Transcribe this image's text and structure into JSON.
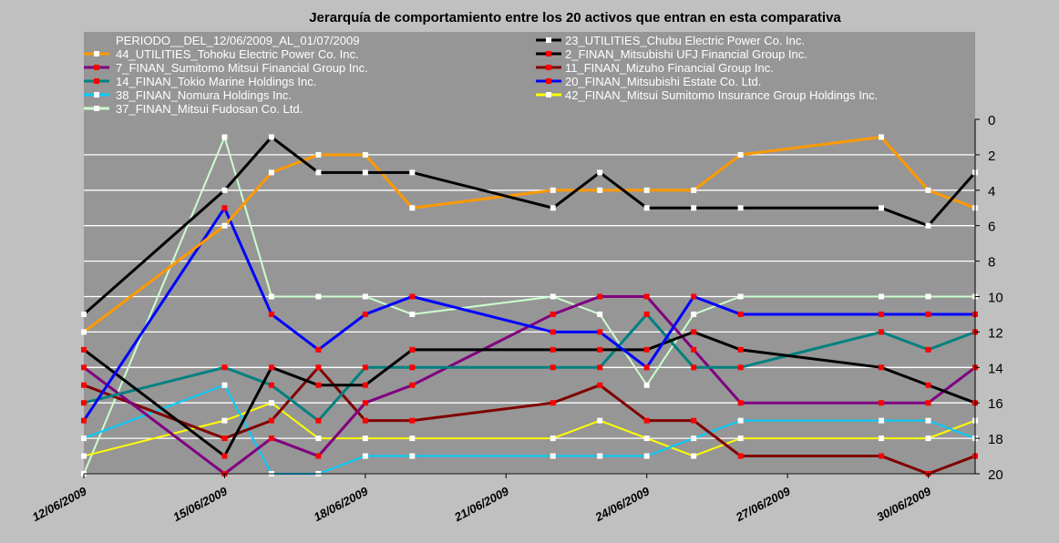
{
  "chart_data": {
    "type": "line",
    "title": "Jerarquía de comportamiento entre los 20 activos que entran en esta comparativa",
    "period_label": "PERIODO__DEL_12/06/2009_AL_01/07/2009",
    "x": [
      "12/06/2009",
      "15/06/2009",
      "16/06/2009",
      "17/06/2009",
      "18/06/2009",
      "19/06/2009",
      "22/06/2009",
      "23/06/2009",
      "24/06/2009",
      "25/06/2009",
      "26/06/2009",
      "29/06/2009",
      "30/06/2009",
      "01/07/2009"
    ],
    "x_day_offsets": [
      0,
      3,
      4,
      5,
      6,
      7,
      10,
      11,
      12,
      13,
      14,
      17,
      18,
      19
    ],
    "x_tick_labels": [
      "12/06/2009",
      "15/06/2009",
      "18/06/2009",
      "21/06/2009",
      "24/06/2009",
      "27/06/2009",
      "30/06/2009"
    ],
    "x_tick_offsets": [
      0,
      3,
      6,
      9,
      12,
      15,
      18
    ],
    "y_ticks": [
      0,
      2,
      4,
      6,
      8,
      10,
      12,
      14,
      16,
      18,
      20
    ],
    "ylim": [
      20,
      0
    ],
    "y_reversed": true,
    "grid": true,
    "legend_placement": "top",
    "series": [
      {
        "name": "23_UTILITIES_Chubu Electric Power Co. Inc.",
        "color": "#000000",
        "marker": "#ffffff",
        "values": [
          11,
          4,
          1,
          3,
          3,
          3,
          5,
          3,
          5,
          5,
          5,
          5,
          6,
          3
        ]
      },
      {
        "name": "44_UTILITIES_Tohoku Electric Power Co. Inc.",
        "color": "#ff9900",
        "marker": "#ffffff",
        "values": [
          12,
          6,
          3,
          2,
          2,
          5,
          4,
          4,
          4,
          4,
          2,
          1,
          4,
          5
        ]
      },
      {
        "name": "2_FINAN_Mitsubishi UFJ Financial Group Inc.",
        "color": "#000000",
        "marker": "#ff0000",
        "values": [
          13,
          19,
          14,
          15,
          15,
          13,
          13,
          13,
          13,
          12,
          13,
          14,
          15,
          16
        ]
      },
      {
        "name": "7_FINAN_Sumitomo Mitsui Financial Group Inc.",
        "color": "#800080",
        "marker": "#ff0000",
        "values": [
          14,
          20,
          18,
          19,
          16,
          15,
          11,
          10,
          10,
          13,
          16,
          16,
          16,
          14
        ]
      },
      {
        "name": "11_FINAN_Mizuho Financial Group Inc.",
        "color": "#800000",
        "marker": "#ff0000",
        "values": [
          15,
          18,
          17,
          14,
          17,
          17,
          16,
          15,
          17,
          17,
          19,
          19,
          20,
          19
        ]
      },
      {
        "name": "14_FINAN_Tokio Marine Holdings Inc.",
        "color": "#008080",
        "marker": "#ff0000",
        "values": [
          16,
          14,
          15,
          17,
          14,
          14,
          14,
          14,
          11,
          14,
          14,
          12,
          13,
          12
        ]
      },
      {
        "name": "20_FINAN_Mitsubishi Estate Co. Ltd.",
        "color": "#0000ff",
        "marker": "#ff0000",
        "values": [
          17,
          5,
          11,
          13,
          11,
          10,
          12,
          12,
          14,
          10,
          11,
          11,
          11,
          11
        ]
      },
      {
        "name": "38_FINAN_Nomura Holdings Inc.",
        "color": "#00ccff",
        "marker": "#ffffff",
        "values": [
          18,
          15,
          20,
          20,
          19,
          19,
          19,
          19,
          19,
          18,
          17,
          17,
          17,
          18
        ]
      },
      {
        "name": "42_FINAN_Mitsui Sumitomo Insurance Group Holdings Inc.",
        "color": "#ffff00",
        "marker": "#ffffff",
        "values": [
          19,
          17,
          16,
          18,
          18,
          18,
          18,
          17,
          18,
          19,
          18,
          18,
          18,
          17
        ]
      },
      {
        "name": "37_FINAN_Mitsui Fudosan Co. Ltd.",
        "color": "#ccffcc",
        "marker": "#ffffff",
        "values": [
          20,
          1,
          10,
          10,
          10,
          11,
          10,
          11,
          15,
          11,
          10,
          10,
          10,
          10
        ]
      }
    ]
  }
}
